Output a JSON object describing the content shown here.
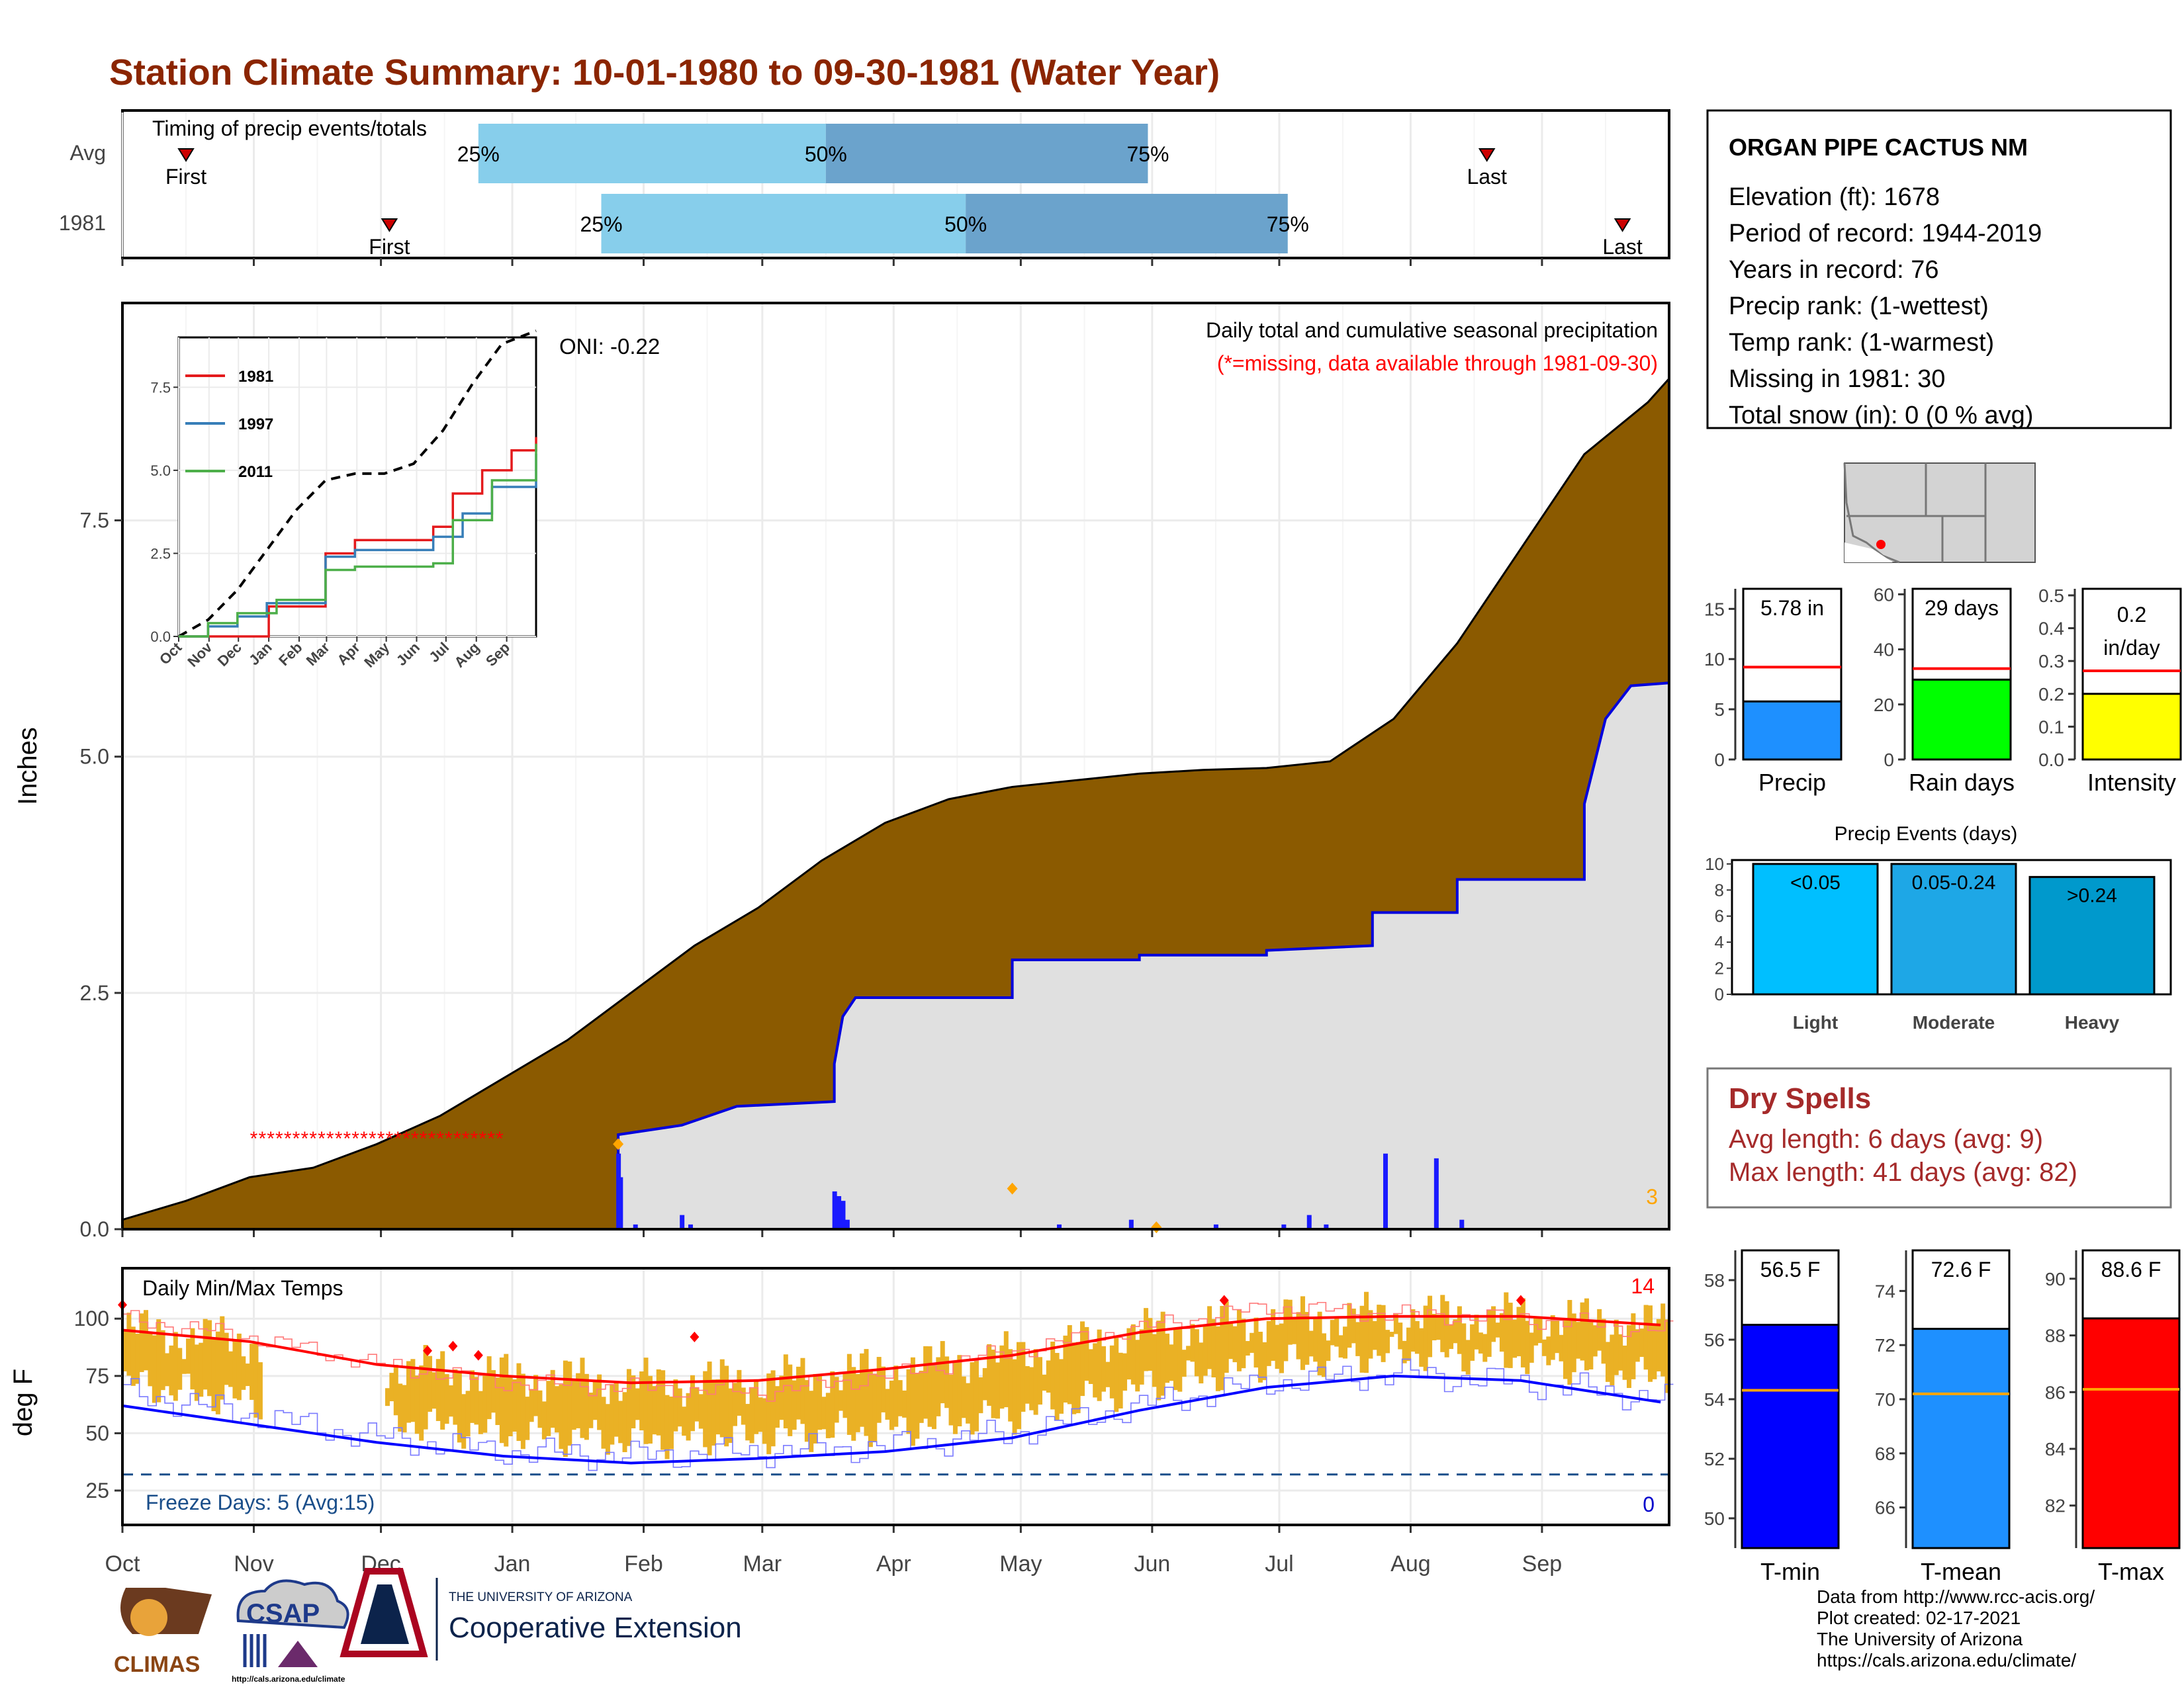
{
  "title": "Station Climate Summary: 10-01-1980 to 09-30-1981 (Water Year)",
  "colors": {
    "title": "#8b2500",
    "precip_fill": "#8b5a00",
    "avg_fill": "#e0e0e0",
    "avg_line": "#0000dd",
    "q_light": "#87ceeb",
    "q_dark": "#6ba3cc",
    "temp_bar": "#eab125",
    "tmax_line": "#ff0000",
    "tmin_line": "#0000ff",
    "dry_spells": "#a52a2a",
    "missing": "#ff0000"
  },
  "months": [
    "Oct",
    "Nov",
    "Dec",
    "Jan",
    "Feb",
    "Mar",
    "Apr",
    "May",
    "Jun",
    "Jul",
    "Aug",
    "Sep"
  ],
  "timing": {
    "title": "Timing of precip events/totals",
    "rows": [
      {
        "label": "Avg",
        "first": "First",
        "last": "Last",
        "q25": "25%",
        "q50": "50%",
        "q75": "75%",
        "first_day": 15,
        "q25_day": 84,
        "q50_day": 166,
        "q75_day": 242,
        "last_day": 322
      },
      {
        "label": "1981",
        "first": "First",
        "last": "Last",
        "q25": "25%",
        "q50": "50%",
        "q75": "75%",
        "first_day": 63,
        "q25_day": 113,
        "q50_day": 199,
        "q75_day": 275,
        "last_day": 354
      }
    ]
  },
  "main": {
    "ylabel": "Inches",
    "yticks": [
      "0.0",
      "2.5",
      "5.0",
      "7.5"
    ],
    "header1": "Daily total and cumulative seasonal precipitation",
    "header2": "(*=missing, data available through 1981-09-30)",
    "oni": "ONI: -0.22",
    "missing_count": "3"
  },
  "inset": {
    "yticks": [
      "0.0",
      "2.5",
      "5.0",
      "7.5"
    ],
    "months": [
      "Oct",
      "Nov",
      "Dec",
      "Jan",
      "Feb",
      "Mar",
      "Apr",
      "May",
      "Jun",
      "Jul",
      "Aug",
      "Sep"
    ],
    "legend": [
      "1981",
      "1997",
      "2011"
    ]
  },
  "temps": {
    "title": "Daily Min/Max Temps",
    "ylabel": "deg F",
    "yticks": [
      "25",
      "50",
      "75",
      "100"
    ],
    "freeze_text": "Freeze Days: 5 (Avg:15)",
    "count_top": "14",
    "count_bottom": "0"
  },
  "station": {
    "name": "ORGAN PIPE CACTUS NM",
    "lines": [
      "Elevation (ft): 1678",
      "Period of record: 1944-2019",
      "Years in record: 76",
      "Precip rank:  (1-wettest)",
      "Temp rank:  (1-warmest)",
      "Missing in 1981: 30",
      "Total snow (in): 0 (0 % avg)"
    ]
  },
  "small_bars": [
    {
      "label": "Precip",
      "value_text": "5.78 in",
      "ticks": [
        "0",
        "5",
        "10",
        "15"
      ]
    },
    {
      "label": "Rain days",
      "value_text": "29 days",
      "ticks": [
        "0",
        "20",
        "40",
        "60"
      ]
    },
    {
      "label": "Intensity",
      "value_text": "0.2 in/day",
      "value_line1": "0.2",
      "value_line2": "in/day",
      "ticks": [
        "0.0",
        "0.1",
        "0.2",
        "0.3",
        "0.4",
        "0.5"
      ]
    }
  ],
  "events": {
    "title": "Precip Events (days)",
    "ticks": [
      "0",
      "2",
      "4",
      "6",
      "8",
      "10"
    ],
    "bars": [
      {
        "label": "Light",
        "range": "<0.05"
      },
      {
        "label": "Moderate",
        "range": "0.05-0.24"
      },
      {
        "label": "Heavy",
        "range": ">0.24"
      }
    ]
  },
  "dry_spells": {
    "title": "Dry Spells",
    "avg": "Avg length: 6 days (avg: 9)",
    "max": "Max length: 41 days (avg: 82)"
  },
  "temp_bars": [
    {
      "label": "T-min",
      "value_text": "56.5 F",
      "ticks": [
        "50",
        "52",
        "54",
        "56",
        "58"
      ]
    },
    {
      "label": "T-mean",
      "value_text": "72.6 F",
      "ticks": [
        "66",
        "68",
        "70",
        "72",
        "74"
      ]
    },
    {
      "label": "T-max",
      "value_text": "88.6 F",
      "ticks": [
        "82",
        "84",
        "86",
        "88",
        "90"
      ]
    }
  ],
  "footer": {
    "lines": [
      "Data from http://www.rcc-acis.org/",
      "Plot created: 02-17-2021",
      "The University of Arizona",
      "https://cals.arizona.edu/climate/"
    ],
    "climas": "CLIMAS",
    "csap": "CSAP",
    "csap_url": "http://cals.arizona.edu/climate",
    "ua_small": "THE UNIVERSITY OF ARIZONA",
    "ua_big": "Cooperative Extension"
  },
  "chart_data": [
    {
      "type": "area",
      "title": "Daily total and cumulative seasonal precipitation",
      "ylabel": "Inches",
      "ylim": [
        0,
        9.8
      ],
      "x_unit": "day of water year (0 = Oct 1)",
      "series": [
        {
          "name": "cumulative 1981 observed",
          "points": [
            [
              0,
              0.1
            ],
            [
              15,
              0.3
            ],
            [
              30,
              0.55
            ],
            [
              45,
              0.65
            ],
            [
              60,
              0.9
            ],
            [
              75,
              1.2
            ],
            [
              90,
              1.6
            ],
            [
              105,
              2.0
            ],
            [
              120,
              2.5
            ],
            [
              135,
              3.0
            ],
            [
              150,
              3.4
            ],
            [
              165,
              3.9
            ],
            [
              180,
              4.3
            ],
            [
              195,
              4.55
            ],
            [
              210,
              4.68
            ],
            [
              225,
              4.75
            ],
            [
              240,
              4.82
            ],
            [
              255,
              4.86
            ],
            [
              270,
              4.88
            ],
            [
              285,
              4.95
            ],
            [
              300,
              5.4
            ],
            [
              315,
              6.2
            ],
            [
              330,
              7.2
            ],
            [
              345,
              8.2
            ],
            [
              360,
              8.75
            ],
            [
              365,
              9.0
            ]
          ]
        },
        {
          "name": "cumulative",
          "points": [
            [
              0,
              0
            ],
            [
              117,
              0
            ],
            [
              117,
              1.0
            ],
            [
              132,
              1.1
            ],
            [
              145,
              1.3
            ],
            [
              168,
              1.35
            ],
            [
              168,
              1.75
            ],
            [
              170,
              2.25
            ],
            [
              173,
              2.45
            ],
            [
              210,
              2.45
            ],
            [
              210,
              2.85
            ],
            [
              240,
              2.85
            ],
            [
              240,
              2.9
            ],
            [
              270,
              2.9
            ],
            [
              270,
              2.95
            ],
            [
              295,
              3.0
            ],
            [
              295,
              3.35
            ],
            [
              315,
              3.35
            ],
            [
              315,
              3.7
            ],
            [
              345,
              3.7
            ],
            [
              345,
              4.5
            ],
            [
              350,
              5.4
            ],
            [
              356,
              5.75
            ],
            [
              365,
              5.78
            ]
          ]
        }
      ],
      "daily_bars": [
        [
          117,
          0.8
        ],
        [
          117.5,
          0.55
        ],
        [
          121,
          0.05
        ],
        [
          132,
          0.15
        ],
        [
          134,
          0.05
        ],
        [
          168,
          0.4
        ],
        [
          169,
          0.35
        ],
        [
          170,
          0.3
        ],
        [
          171,
          0.1
        ],
        [
          221,
          0.05
        ],
        [
          238,
          0.1
        ],
        [
          258,
          0.05
        ],
        [
          274,
          0.05
        ],
        [
          280,
          0.15
        ],
        [
          284,
          0.05
        ],
        [
          298,
          0.8
        ],
        [
          310,
          0.75
        ],
        [
          316,
          0.1
        ]
      ]
    },
    {
      "type": "line",
      "title": "",
      "ylim": [
        0,
        9
      ],
      "series": [
        {
          "name": "",
          "points": [
            [
              0,
              0
            ],
            [
              30,
              0.5
            ],
            [
              60,
              1.4
            ],
            [
              90,
              2.6
            ],
            [
              120,
              3.8
            ],
            [
              150,
              4.7
            ],
            [
              180,
              4.9
            ],
            [
              210,
              4.9
            ],
            [
              240,
              5.2
            ],
            [
              270,
              6.2
            ],
            [
              300,
              7.6
            ],
            [
              330,
              8.8
            ],
            [
              365,
              9.2
            ]
          ]
        },
        {
          "name": "1981",
          "points": [
            [
              0,
              0
            ],
            [
              90,
              0
            ],
            [
              92,
              0.9
            ],
            [
              150,
              2.5
            ],
            [
              180,
              2.9
            ],
            [
              260,
              3.3
            ],
            [
              280,
              4.3
            ],
            [
              310,
              5.0
            ],
            [
              340,
              5.6
            ],
            [
              365,
              6.0
            ]
          ]
        },
        {
          "name": "1997",
          "points": [
            [
              0,
              0
            ],
            [
              30,
              0.3
            ],
            [
              60,
              0.6
            ],
            [
              90,
              1.0
            ],
            [
              150,
              2.4
            ],
            [
              180,
              2.6
            ],
            [
              260,
              3.0
            ],
            [
              290,
              3.7
            ],
            [
              320,
              4.5
            ],
            [
              365,
              5.5
            ]
          ]
        },
        {
          "name": "2011",
          "points": [
            [
              0,
              0
            ],
            [
              30,
              0.4
            ],
            [
              60,
              0.7
            ],
            [
              100,
              1.1
            ],
            [
              150,
              2.0
            ],
            [
              180,
              2.1
            ],
            [
              260,
              2.2
            ],
            [
              280,
              3.5
            ],
            [
              320,
              4.7
            ],
            [
              365,
              5.8
            ]
          ]
        }
      ]
    },
    {
      "type": "line",
      "title": "Daily Min/Max Temps",
      "ylabel": "deg F",
      "ylim": [
        10,
        122
      ],
      "series": [
        {
          "name": "",
          "points": [
            [
              0,
              95
            ],
            [
              30,
              90
            ],
            [
              60,
              80
            ],
            [
              90,
              75
            ],
            [
              120,
              72
            ],
            [
              150,
              73
            ],
            [
              180,
              78
            ],
            [
              210,
              84
            ],
            [
              240,
              94
            ],
            [
              270,
              100
            ],
            [
              300,
              101
            ],
            [
              330,
              101
            ],
            [
              365,
              97
            ]
          ]
        },
        {
          "name": "",
          "points": [
            [
              0,
              62
            ],
            [
              30,
              54
            ],
            [
              60,
              46
            ],
            [
              90,
              40
            ],
            [
              120,
              37
            ],
            [
              150,
              39
            ],
            [
              180,
              42
            ],
            [
              210,
              48
            ],
            [
              240,
              60
            ],
            [
              270,
              70
            ],
            [
              300,
              75
            ],
            [
              330,
              73
            ],
            [
              365,
              63
            ]
          ]
        },
        {
          "name": "",
          "points": [
            [
              0,
              100
            ],
            [
              30,
              92
            ],
            [
              60,
              80
            ],
            [
              90,
              72
            ],
            [
              120,
              70
            ],
            [
              150,
              68
            ],
            [
              180,
              75
            ],
            [
              210,
              86
            ],
            [
              240,
              96
            ],
            [
              270,
              105
            ],
            [
              300,
              102
            ],
            [
              330,
              100
            ],
            [
              365,
              95
            ]
          ]
        },
        {
          "name": "",
          "points": [
            [
              0,
              68
            ],
            [
              30,
              58
            ],
            [
              60,
              48
            ],
            [
              90,
              42
            ],
            [
              120,
              40
            ],
            [
              150,
              42
            ],
            [
              180,
              44
            ],
            [
              210,
              50
            ],
            [
              240,
              62
            ],
            [
              270,
              72
            ],
            [
              300,
              76
            ],
            [
              330,
              72
            ],
            [
              365,
              65
            ]
          ]
        }
      ],
      "freeze_line": 32
    },
    {
      "type": "bar",
      "title": "",
      "categories": [
        "Precip"
      ],
      "values": [
        5.78
      ],
      "avg_line": 9.2,
      "ylim": [
        0,
        17
      ]
    },
    {
      "type": "bar",
      "title": "",
      "categories": [
        "Rain days"
      ],
      "values": [
        29
      ],
      "avg_line": 33,
      "ylim": [
        0,
        62
      ]
    },
    {
      "type": "bar",
      "title": "",
      "categories": [
        "Intensity"
      ],
      "values": [
        0.2
      ],
      "avg_line": 0.27,
      "ylim": [
        0,
        0.52
      ]
    },
    {
      "type": "bar",
      "title": "Precip Events (days)",
      "categories": [
        "Light",
        "Moderate",
        "Heavy"
      ],
      "values": [
        10,
        10,
        9
      ],
      "ylim": [
        0,
        10.3
      ]
    },
    {
      "type": "bar",
      "title": "",
      "categories": [
        "T-min"
      ],
      "values": [
        56.5
      ],
      "avg_line": 54.3,
      "ylim": [
        49,
        59
      ]
    },
    {
      "type": "bar",
      "title": "",
      "categories": [
        "T-mean"
      ],
      "values": [
        72.6
      ],
      "avg_line": 70.2,
      "ylim": [
        64.5,
        75.5
      ]
    },
    {
      "type": "bar",
      "title": "",
      "categories": [
        "T-max"
      ],
      "values": [
        88.6
      ],
      "avg_line": 86.1,
      "ylim": [
        80.5,
        91
      ]
    }
  ]
}
